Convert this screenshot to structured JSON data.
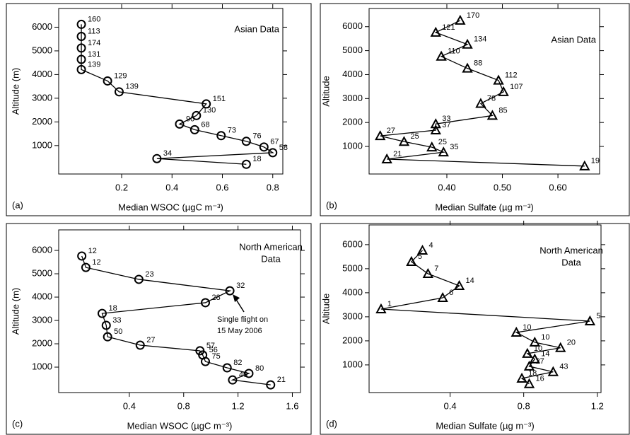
{
  "chart_data": [
    {
      "type": "line",
      "panel_label": "(a)",
      "note": [
        "Asian Data"
      ],
      "x_label": "Median WSOC (µgC m⁻³)",
      "y_label": "Altitude (m)",
      "marker": "circle",
      "color": "#000000",
      "x": [
        0.04,
        0.04,
        0.04,
        0.04,
        0.04,
        0.144,
        0.19,
        0.536,
        0.497,
        0.43,
        0.49,
        0.595,
        0.695,
        0.765,
        0.8,
        0.34,
        0.695
      ],
      "y": [
        6120,
        5610,
        5120,
        4640,
        4210,
        3730,
        3270,
        2760,
        2270,
        1910,
        1670,
        1420,
        1180,
        940,
        700,
        450,
        210
      ],
      "counts": [
        160,
        113,
        174,
        131,
        139,
        129,
        139,
        151,
        130,
        90,
        68,
        73,
        76,
        67,
        58,
        34,
        18
      ],
      "xlim": [
        -0.05,
        0.84
      ],
      "ylim": [
        -200,
        6790
      ],
      "xticks": [
        0.2,
        0.4,
        0.6,
        0.8
      ],
      "yticks": [
        1000,
        2000,
        3000,
        4000,
        5000,
        6000
      ]
    },
    {
      "type": "line",
      "panel_label": "(b)",
      "note": [
        "Asian Data"
      ],
      "x_label": "Median Sulfate (µg m⁻³)",
      "y_label": "Altitude",
      "marker": "triangle",
      "color": "#000000",
      "x": [
        0.424,
        0.38,
        0.437,
        0.39,
        0.437,
        0.493,
        0.502,
        0.461,
        0.482,
        0.38,
        0.38,
        0.28,
        0.323,
        0.373,
        0.394,
        0.292,
        0.648
      ],
      "y": [
        6260,
        5760,
        5260,
        4760,
        4260,
        3760,
        3280,
        2790,
        2290,
        1940,
        1680,
        1440,
        1200,
        970,
        760,
        470,
        180
      ],
      "counts": [
        170,
        121,
        134,
        110,
        88,
        112,
        107,
        78,
        85,
        33,
        37,
        27,
        25,
        25,
        35,
        21,
        19
      ],
      "xlim": [
        0.26,
        0.675
      ],
      "ylim": [
        -150,
        6760
      ],
      "xticks": [
        {
          "value": 0.4,
          "label": "0.40"
        },
        {
          "value": 0.5,
          "label": "0.50"
        },
        {
          "value": 0.6,
          "label": "0.60"
        }
      ],
      "yticks": [
        1000,
        2000,
        3000,
        4000,
        5000,
        6000
      ]
    },
    {
      "type": "line",
      "panel_label": "(c)",
      "note": [
        "North American",
        "Data"
      ],
      "x_label": "Median WSOC (µgC m⁻³)",
      "y_label": "Altitude (m)",
      "marker": "circle",
      "color": "#000000",
      "annotation": [
        "Single flight on",
        "15 May 2006"
      ],
      "x": [
        0.05,
        0.08,
        0.47,
        1.14,
        0.96,
        0.2,
        0.23,
        0.24,
        0.48,
        0.92,
        0.94,
        0.96,
        1.12,
        1.28,
        1.16,
        1.44
      ],
      "y": [
        5760,
        5270,
        4760,
        4270,
        3760,
        3300,
        2790,
        2300,
        1940,
        1700,
        1520,
        1240,
        970,
        730,
        450,
        240
      ],
      "counts": [
        12,
        12,
        23,
        32,
        28,
        18,
        33,
        50,
        27,
        57,
        56,
        75,
        82,
        80,
        40,
        21
      ],
      "xlim": [
        -0.12,
        1.66
      ],
      "ylim": [
        -90,
        6880
      ],
      "xticks": [
        0.4,
        0.8,
        1.2,
        1.6
      ],
      "yticks": [
        1000,
        2000,
        3000,
        4000,
        5000,
        6000
      ]
    },
    {
      "type": "line",
      "panel_label": "(d)",
      "note": [
        "North American",
        "Data"
      ],
      "x_label": "Median Sulfate (µg m⁻³)",
      "y_label": "Altitude",
      "marker": "triangle",
      "color": "#000000",
      "x": [
        0.25,
        0.19,
        0.28,
        0.45,
        0.36,
        0.025,
        1.16,
        0.76,
        0.86,
        1.0,
        0.82,
        0.86,
        0.83,
        0.96,
        0.79,
        0.83
      ],
      "y": [
        5760,
        5290,
        4790,
        4290,
        3790,
        3320,
        2820,
        2350,
        1940,
        1710,
        1470,
        1240,
        940,
        710,
        440,
        210
      ],
      "counts": [
        4,
        5,
        7,
        14,
        6,
        1,
        5,
        10,
        10,
        20,
        10,
        14,
        27,
        43,
        18,
        16
      ],
      "xlim": [
        -0.04,
        1.22
      ],
      "ylim": [
        -150,
        6820
      ],
      "xticks": [
        0.4,
        0.8,
        1.2
      ],
      "yticks": [
        1000,
        2000,
        3000,
        4000,
        5000,
        6000
      ]
    }
  ]
}
